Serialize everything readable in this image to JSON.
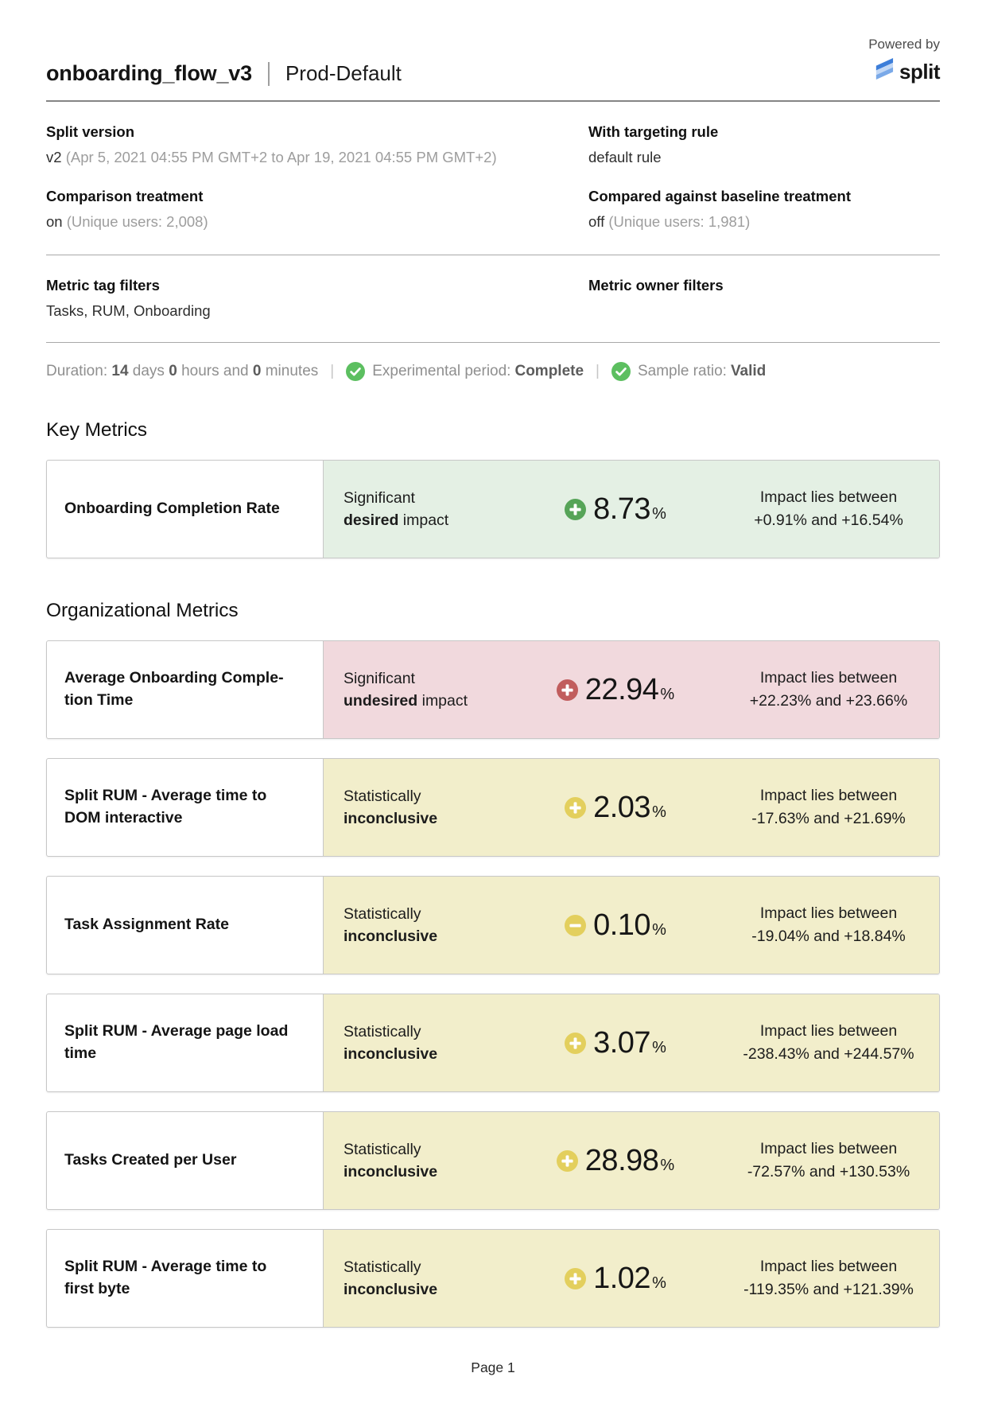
{
  "header": {
    "title": "onboarding_flow_v3",
    "environment": "Prod-Default",
    "powered_by": "Powered by",
    "brand": "split"
  },
  "meta": {
    "fields": [
      {
        "label": "Split version",
        "value": "v2",
        "note": "(Apr 5, 2021 04:55 PM GMT+2 to Apr 19, 2021 04:55 PM GMT+2)"
      },
      {
        "label": "With targeting rule",
        "value": "default rule",
        "note": ""
      },
      {
        "label": "Comparison treatment",
        "value": "on",
        "note": "(Unique users: 2,008)"
      },
      {
        "label": "Compared against baseline treatment",
        "value": "off",
        "note": "(Unique users: 1,981)"
      }
    ],
    "filters": [
      {
        "label": "Metric tag filters",
        "value": "Tasks, RUM, Onboarding"
      },
      {
        "label": "Metric owner filters",
        "value": ""
      }
    ]
  },
  "status_bar": {
    "duration_segments": [
      {
        "text": "Duration: ",
        "bold": false
      },
      {
        "text": "14",
        "bold": true
      },
      {
        "text": " days ",
        "bold": false
      },
      {
        "text": "0",
        "bold": true
      },
      {
        "text": " hours and ",
        "bold": false
      },
      {
        "text": "0",
        "bold": true
      },
      {
        "text": " minutes",
        "bold": false
      }
    ],
    "items": [
      {
        "label": "Experimental period:",
        "value": "Complete"
      },
      {
        "label": "Sample ratio:",
        "value": "Valid"
      }
    ]
  },
  "sections": [
    {
      "heading": "Key Metrics",
      "metrics": [
        {
          "name": "Onboarding Completion Rate",
          "status_line1": "Significant",
          "status_bold": "desired",
          "status_rest": " impact",
          "tone": "desired",
          "sign": "plus",
          "value": "8.73",
          "unit": "%",
          "impact_line1": "Impact lies between",
          "impact_line2": "+0.91% and +16.54%"
        }
      ]
    },
    {
      "heading": "Organizational Metrics",
      "metrics": [
        {
          "name": "Average Onboarding Comple­tion Time",
          "status_line1": "Significant",
          "status_bold": "undesired",
          "status_rest": " impact",
          "tone": "undesired",
          "sign": "plus",
          "value": "22.94",
          "unit": "%",
          "impact_line1": "Impact lies between",
          "impact_line2": "+22.23% and +23.66%"
        },
        {
          "name": "Split RUM - Average time to DOM interactive",
          "status_line1": "Statistically",
          "status_bold": "inconclusive",
          "status_rest": "",
          "tone": "inconclusive",
          "sign": "plus",
          "value": "2.03",
          "unit": "%",
          "impact_line1": "Impact lies between",
          "impact_line2": "-17.63% and +21.69%"
        },
        {
          "name": "Task Assignment Rate",
          "status_line1": "Statistically",
          "status_bold": "inconclusive",
          "status_rest": "",
          "tone": "inconclusive",
          "sign": "minus",
          "value": "0.10",
          "unit": "%",
          "impact_line1": "Impact lies between",
          "impact_line2": "-19.04% and +18.84%"
        },
        {
          "name": "Split RUM - Average page load time",
          "status_line1": "Statistically",
          "status_bold": "inconclusive",
          "status_rest": "",
          "tone": "inconclusive",
          "sign": "plus",
          "value": "3.07",
          "unit": "%",
          "impact_line1": "Impact lies between",
          "impact_line2": "-238.43% and +244.57%"
        },
        {
          "name": "Tasks Created per User",
          "status_line1": "Statistically",
          "status_bold": "inconclusive",
          "status_rest": "",
          "tone": "inconclusive",
          "sign": "plus",
          "value": "28.98",
          "unit": "%",
          "impact_line1": "Impact lies between",
          "impact_line2": "-72.57% and +130.53%"
        },
        {
          "name": "Split RUM - Average time to first byte",
          "status_line1": "Statistically",
          "status_bold": "inconclusive",
          "status_rest": "",
          "tone": "inconclusive",
          "sign": "plus",
          "value": "1.02",
          "unit": "%",
          "impact_line1": "Impact lies between",
          "impact_line2": "-119.35% and +121.39%"
        }
      ]
    }
  ],
  "footer": {
    "page_label": "Page 1"
  },
  "colors": {
    "desired_bg": "#e4f0e4",
    "desired_icon": "#56a458",
    "undesired_bg": "#f1d9dd",
    "undesired_icon": "#c15d5d",
    "inconclusive_bg": "#f2eecb",
    "inconclusive_icon": "#e3cf5d",
    "check_icon": "#5cbf60",
    "brand_blue_dark": "#3d7ed9",
    "brand_blue_light": "#c3d8f5",
    "brand_blue_mid": "#7aa9e8"
  }
}
